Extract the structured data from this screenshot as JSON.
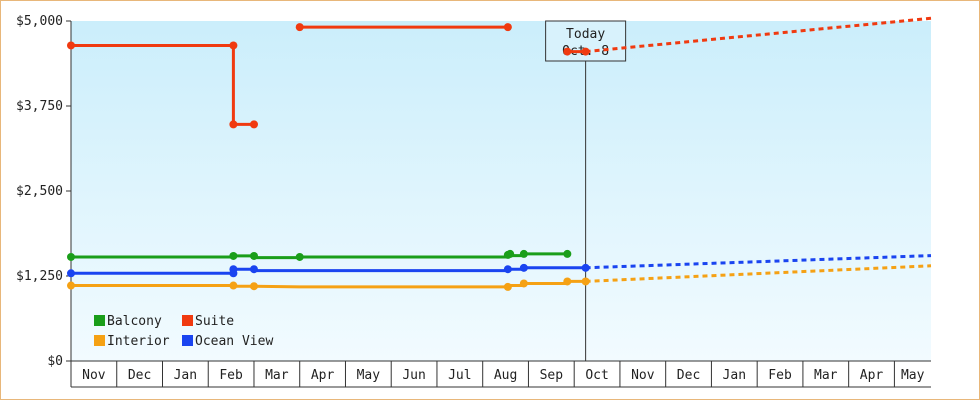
{
  "chart_data": {
    "type": "line",
    "y_ticks": [
      {
        "value": 0,
        "label": "$0"
      },
      {
        "value": 1250,
        "label": "$1,250"
      },
      {
        "value": 2500,
        "label": "$2,500"
      },
      {
        "value": 3750,
        "label": "$3,750"
      },
      {
        "value": 5000,
        "label": "$5,000"
      }
    ],
    "ylim": [
      0,
      5000
    ],
    "x_months": [
      "Nov",
      "Dec",
      "Jan",
      "Feb",
      "Mar",
      "Apr",
      "May",
      "Jun",
      "Jul",
      "Aug",
      "Sep",
      "Oct",
      "Nov",
      "Dec",
      "Jan",
      "Feb",
      "Mar",
      "Apr",
      "May"
    ],
    "xlim": [
      0,
      18.8
    ],
    "today": {
      "label_line1": "Today",
      "label_line2": "Oct. 8",
      "x": 11.25
    },
    "legend_position": "bottom-left",
    "series": [
      {
        "name": "Balcony",
        "color": "#1a9e1a",
        "segments": [
          [
            [
              0,
              1530
            ],
            [
              3.55,
              1530
            ],
            [
              3.55,
              1545
            ],
            [
              4.0,
              1545
            ],
            [
              4.0,
              1520
            ],
            [
              5.0,
              1520
            ],
            [
              5.0,
              1530
            ],
            [
              9.55,
              1530
            ],
            [
              9.55,
              1575
            ],
            [
              9.6,
              1575
            ],
            [
              9.6,
              1550
            ],
            [
              9.9,
              1550
            ],
            [
              9.9,
              1575
            ],
            [
              10.85,
              1575
            ]
          ]
        ],
        "projection": []
      },
      {
        "name": "Suite",
        "color": "#f03a10",
        "segments": [
          [
            [
              0,
              4640
            ],
            [
              3.55,
              4640
            ],
            [
              3.55,
              3480
            ],
            [
              4.0,
              3480
            ]
          ],
          [
            [
              5.0,
              4910
            ],
            [
              9.55,
              4910
            ]
          ],
          [
            [
              10.85,
              4550
            ],
            [
              11.25,
              4550
            ]
          ]
        ],
        "projection": [
          [
            11.25,
            4550
          ],
          [
            18.8,
            5040
          ]
        ]
      },
      {
        "name": "Interior",
        "color": "#f5a114",
        "segments": [
          [
            [
              0,
              1110
            ],
            [
              3.55,
              1110
            ],
            [
              3.55,
              1100
            ],
            [
              4.0,
              1100
            ],
            [
              5.0,
              1090
            ],
            [
              9.55,
              1090
            ],
            [
              9.55,
              1110
            ],
            [
              9.9,
              1110
            ],
            [
              9.9,
              1140
            ],
            [
              10.85,
              1140
            ],
            [
              10.85,
              1170
            ],
            [
              11.25,
              1170
            ]
          ]
        ],
        "projection": [
          [
            11.25,
            1170
          ],
          [
            18.8,
            1400
          ]
        ]
      },
      {
        "name": "Ocean View",
        "color": "#1a44f0",
        "segments": [
          [
            [
              0,
              1290
            ],
            [
              3.55,
              1290
            ],
            [
              3.55,
              1350
            ],
            [
              4.0,
              1350
            ],
            [
              4.0,
              1330
            ],
            [
              9.55,
              1330
            ],
            [
              9.55,
              1350
            ],
            [
              9.9,
              1350
            ],
            [
              9.9,
              1370
            ],
            [
              11.25,
              1370
            ]
          ]
        ],
        "projection": [
          [
            11.25,
            1370
          ],
          [
            18.8,
            1550
          ]
        ]
      }
    ],
    "markers": {
      "Balcony": [
        [
          0,
          1530
        ],
        [
          3.55,
          1545
        ],
        [
          4.0,
          1545
        ],
        [
          5.0,
          1530
        ],
        [
          9.55,
          1560
        ],
        [
          9.6,
          1575
        ],
        [
          9.9,
          1575
        ],
        [
          10.85,
          1575
        ]
      ],
      "Suite": [
        [
          0,
          4640
        ],
        [
          3.55,
          4640
        ],
        [
          3.55,
          3480
        ],
        [
          4.0,
          3480
        ],
        [
          5.0,
          4910
        ],
        [
          9.55,
          4910
        ],
        [
          10.85,
          4550
        ],
        [
          11.25,
          4550
        ]
      ],
      "Interior": [
        [
          0,
          1110
        ],
        [
          3.55,
          1110
        ],
        [
          4.0,
          1100
        ],
        [
          9.55,
          1090
        ],
        [
          9.9,
          1140
        ],
        [
          10.85,
          1170
        ],
        [
          11.25,
          1170
        ]
      ],
      "Ocean View": [
        [
          0,
          1290
        ],
        [
          3.55,
          1290
        ],
        [
          3.55,
          1350
        ],
        [
          4.0,
          1350
        ],
        [
          9.55,
          1350
        ],
        [
          9.9,
          1370
        ],
        [
          11.25,
          1370
        ]
      ]
    }
  }
}
